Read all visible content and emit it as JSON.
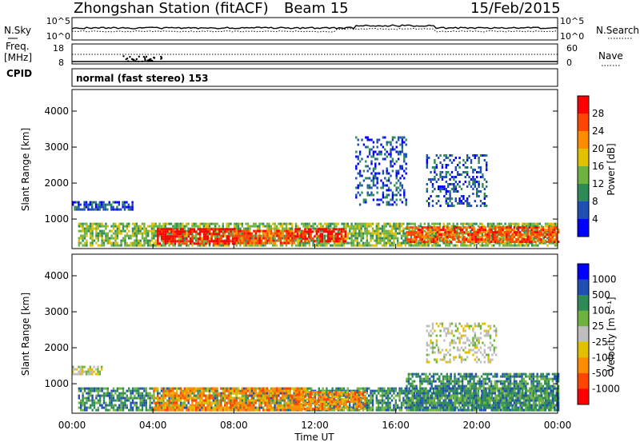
{
  "header": {
    "station": "Zhongshan Station (fitACF)",
    "beam": "Beam 15",
    "date": "15/Feb/2015"
  },
  "sky_panel": {
    "left_label": "N.Sky",
    "left_ticks": [
      "10^5",
      "10^0"
    ],
    "right_label": "N.Search",
    "right_ticks": [
      "10^5",
      "10^0"
    ]
  },
  "freq_panel": {
    "left_label_1": "Freq.",
    "left_label_2": "[MHz]",
    "left_ticks": [
      "18",
      "8"
    ],
    "cpid_label": "CPID",
    "right_label": "Nave",
    "right_ticks": [
      "60",
      "0"
    ]
  },
  "cpid_text": "normal (fast stereo) 153",
  "x_axis": {
    "title": "Time UT",
    "ticks": [
      "00:00",
      "04:00",
      "08:00",
      "12:00",
      "16:00",
      "20:00",
      "00:00"
    ]
  },
  "power_panel": {
    "ylabel": "Slant Range [km]",
    "yticks": [
      "4000",
      "3000",
      "2000",
      "1000"
    ],
    "colorbar_title": "Power [dB]",
    "colorbar_ticks": [
      "28",
      "24",
      "20",
      "16",
      "12",
      "8",
      "4"
    ],
    "colors": [
      "#0000ff",
      "#1f4fb0",
      "#2e8b57",
      "#6fb23f",
      "#e0c000",
      "#ff8c00",
      "#ff4500",
      "#ff0000"
    ]
  },
  "velocity_panel": {
    "ylabel": "Slant Range [km]",
    "yticks": [
      "4000",
      "3000",
      "2000",
      "1000"
    ],
    "colorbar_title": "Velocity [m s⁻¹]",
    "colorbar_ticks": [
      "1000",
      "500",
      "100",
      "25",
      "-25",
      "-100",
      "-500",
      "-1000"
    ],
    "colors": [
      "#ff0000",
      "#ff4500",
      "#ff8c00",
      "#e0c000",
      "#bebebe",
      "#6fb23f",
      "#2e8b57",
      "#1f4fb0",
      "#0000ff"
    ]
  },
  "chart_data": {
    "type": "heatmap",
    "title": "Zhongshan Station (fitACF) Beam 15 15/Feb/2015",
    "xlabel": "Time UT",
    "ylabel": "Slant Range [km]",
    "x_range_hours": [
      0,
      24
    ],
    "y_range_km": [
      180,
      4600
    ],
    "features_power": [
      {
        "t0": 0.3,
        "t1": 24,
        "r0": 250,
        "r1": 900,
        "level": 3
      },
      {
        "t0": 4.2,
        "t1": 8.0,
        "r0": 350,
        "r1": 750,
        "level": 7
      },
      {
        "t0": 8.0,
        "t1": 11.0,
        "r0": 350,
        "r1": 700,
        "level": 6
      },
      {
        "t0": 11.0,
        "t1": 13.5,
        "r0": 400,
        "r1": 750,
        "level": 7
      },
      {
        "t0": 16.5,
        "t1": 24,
        "r0": 350,
        "r1": 800,
        "level": 6
      },
      {
        "t0": 17.5,
        "t1": 20.5,
        "r0": 1400,
        "r1": 2800,
        "level": 1
      },
      {
        "t0": 14.0,
        "t1": 16.5,
        "r0": 1400,
        "r1": 3300,
        "level": 1
      },
      {
        "t0": 0.0,
        "t1": 3.0,
        "r0": 1300,
        "r1": 1500,
        "level": 1
      }
    ],
    "features_velocity": [
      {
        "t0": 0.3,
        "t1": 24,
        "r0": 250,
        "r1": 900,
        "level": 6
      },
      {
        "t0": 4.0,
        "t1": 11.5,
        "r0": 300,
        "r1": 900,
        "level": 2
      },
      {
        "t0": 11.0,
        "t1": 14.5,
        "r0": 300,
        "r1": 800,
        "level": 2
      },
      {
        "t0": 16.5,
        "t1": 24,
        "r0": 300,
        "r1": 1300,
        "level": 6
      },
      {
        "t0": 17.5,
        "t1": 21.0,
        "r0": 1600,
        "r1": 2700,
        "level": 4
      },
      {
        "t0": 0.0,
        "t1": 1.5,
        "r0": 1300,
        "r1": 1500,
        "level": 4
      }
    ]
  }
}
